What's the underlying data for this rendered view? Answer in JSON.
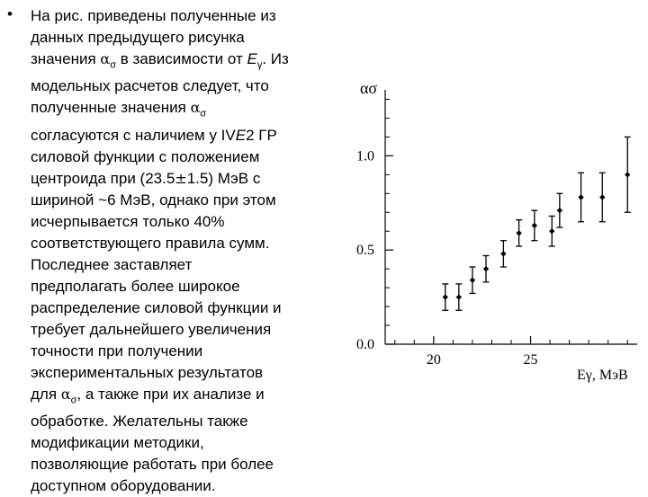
{
  "text": {
    "bullet": "•",
    "lines": [
      [
        {
          "t": "На рис. приведены полученные из"
        }
      ],
      [
        {
          "t": "данных предыдущего рисунка"
        }
      ],
      [
        {
          "t": "значения "
        },
        {
          "t": "α",
          "c": "sym"
        },
        {
          "t": "σ",
          "c": "sub"
        },
        {
          "t": " в зависимости от "
        },
        {
          "t": "E",
          "c": "it"
        },
        {
          "t": "γ",
          "c": "sub"
        },
        {
          "t": ". Из"
        }
      ],
      [
        {
          "t": "модельных расчетов следует, что"
        }
      ],
      [
        {
          "t": "полученные значения "
        },
        {
          "t": "α",
          "c": "sym"
        },
        {
          "t": "σ",
          "c": "sub"
        }
      ],
      [
        {
          "t": "согласуются с наличием у IV"
        },
        {
          "t": "E",
          "c": "it"
        },
        {
          "t": "2 ГР"
        }
      ],
      [
        {
          "t": "силовой функции с положением"
        }
      ],
      [
        {
          "t": "центроида при (23.5"
        },
        {
          "t": "±",
          "c": "sym"
        },
        {
          "t": "1.5) МэВ с"
        }
      ],
      [
        {
          "t": "шириной ~6 МэВ, однако при этом"
        }
      ],
      [
        {
          "t": "исчерпывается только 40%"
        }
      ],
      [
        {
          "t": "соответствующего правила сумм."
        }
      ],
      [
        {
          "t": "Последнее заставляет"
        }
      ],
      [
        {
          "t": "предполагать более широкое"
        }
      ],
      [
        {
          "t": "распределение силовой функции и"
        }
      ],
      [
        {
          "t": "требует дальнейшего увеличения"
        }
      ],
      [
        {
          "t": "точности при получении"
        }
      ],
      [
        {
          "t": "экспериментальных результатов"
        }
      ],
      [
        {
          "t": "для "
        },
        {
          "t": "α",
          "c": "sym"
        },
        {
          "t": "σ",
          "c": "sub"
        },
        {
          "t": ", а также при их анализе и"
        }
      ],
      [
        {
          "t": "обработке. Желательны также"
        }
      ],
      [
        {
          "t": "модификации методики,"
        }
      ],
      [
        {
          "t": "позволяющие работать при более"
        }
      ],
      [
        {
          "t": "доступном оборудовании."
        }
      ]
    ]
  },
  "chart_data": {
    "type": "scatter",
    "ylabel": "ασ",
    "xlabel": "Eγ, МэВ",
    "xlim": [
      17.5,
      30.5
    ],
    "ylim": [
      0,
      1.35
    ],
    "x_ticks": [
      20,
      25
    ],
    "y_ticks": [
      0.0,
      0.5,
      1.0
    ],
    "y_tick_labels": [
      "0.0",
      "0.5",
      "1.0"
    ],
    "x_minor_ticks": [
      18,
      19,
      21,
      22,
      23,
      24,
      26,
      27,
      28,
      29,
      30
    ],
    "y_minor_ticks": [
      0.1,
      0.2,
      0.3,
      0.4,
      0.6,
      0.7,
      0.8,
      0.9,
      1.1,
      1.2,
      1.3
    ],
    "points": [
      {
        "x": 20.6,
        "y": 0.25,
        "yerr": 0.07
      },
      {
        "x": 21.3,
        "y": 0.25,
        "yerr": 0.07
      },
      {
        "x": 22.0,
        "y": 0.34,
        "yerr": 0.07
      },
      {
        "x": 22.7,
        "y": 0.4,
        "yerr": 0.07
      },
      {
        "x": 23.6,
        "y": 0.48,
        "yerr": 0.07
      },
      {
        "x": 24.4,
        "y": 0.59,
        "yerr": 0.07
      },
      {
        "x": 25.2,
        "y": 0.63,
        "yerr": 0.08
      },
      {
        "x": 26.1,
        "y": 0.6,
        "yerr": 0.08
      },
      {
        "x": 26.5,
        "y": 0.71,
        "yerr": 0.09
      },
      {
        "x": 27.6,
        "y": 0.78,
        "yerr": 0.13
      },
      {
        "x": 28.7,
        "y": 0.78,
        "yerr": 0.13
      },
      {
        "x": 30.0,
        "y": 0.9,
        "yerr": 0.2
      }
    ],
    "grid": false,
    "legend": "none"
  }
}
